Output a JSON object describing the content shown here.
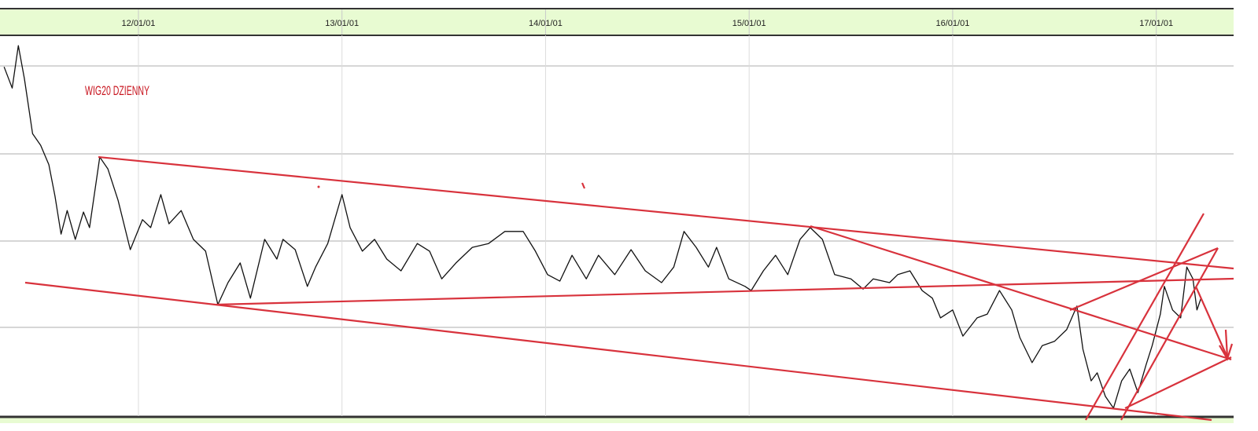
{
  "chart_data": {
    "type": "line",
    "title": "WIG20 DZIENNY",
    "xlim": [
      2011.32,
      2017.38
    ],
    "xticks": [
      {
        "value": 2012,
        "label": "12/01/01"
      },
      {
        "value": 2013,
        "label": "13/01/01"
      },
      {
        "value": 2014,
        "label": "14/01/01"
      },
      {
        "value": 2015,
        "label": "15/01/01"
      },
      {
        "value": 2016,
        "label": "16/01/01"
      },
      {
        "value": 2017,
        "label": "17/01/01"
      }
    ],
    "ylim": [
      0,
      100
    ],
    "grid": true,
    "x": [
      2011.34,
      2011.38,
      2011.41,
      2011.44,
      2011.48,
      2011.52,
      2011.56,
      2011.59,
      2011.62,
      2011.65,
      2011.69,
      2011.73,
      2011.76,
      2011.81,
      2011.85,
      2011.9,
      2011.96,
      2012.02,
      2012.06,
      2012.11,
      2012.15,
      2012.21,
      2012.27,
      2012.33,
      2012.39,
      2012.44,
      2012.5,
      2012.55,
      2012.62,
      2012.68,
      2012.71,
      2012.77,
      2012.83,
      2012.87,
      2012.93,
      2013.0,
      2013.04,
      2013.1,
      2013.16,
      2013.22,
      2013.29,
      2013.37,
      2013.43,
      2013.49,
      2013.56,
      2013.64,
      2013.72,
      2013.8,
      2013.89,
      2013.95,
      2014.01,
      2014.07,
      2014.13,
      2014.2,
      2014.26,
      2014.34,
      2014.42,
      2014.49,
      2014.57,
      2014.63,
      2014.68,
      2014.74,
      2014.8,
      2014.84,
      2014.9,
      2014.98,
      2015.01,
      2015.07,
      2015.13,
      2015.19,
      2015.25,
      2015.3,
      2015.36,
      2015.42,
      2015.5,
      2015.56,
      2015.61,
      2015.69,
      2015.73,
      2015.79,
      2015.85,
      2015.9,
      2015.94,
      2016.0,
      2016.05,
      2016.12,
      2016.17,
      2016.23,
      2016.29,
      2016.33,
      2016.39,
      2016.44,
      2016.5,
      2016.56,
      2016.61,
      2016.64,
      2016.68,
      2016.71,
      2016.75,
      2016.79,
      2016.83,
      2016.87,
      2016.91,
      2016.95,
      2016.98,
      2017.02,
      2017.04,
      2017.08,
      2017.12,
      2017.15,
      2017.18,
      2017.2,
      2017.22
    ],
    "series": [
      {
        "color": "#111111",
        "values": [
          92.1,
          86.5,
          97.7,
          89.0,
          74.5,
          71.4,
          66.3,
          58.0,
          48.0,
          54.2,
          46.6,
          53.8,
          49.7,
          68.3,
          65.2,
          56.9,
          43.9,
          51.8,
          49.7,
          58.4,
          50.7,
          54.2,
          46.6,
          43.5,
          29.4,
          35.2,
          40.4,
          31.1,
          46.6,
          41.4,
          46.6,
          43.9,
          34.2,
          39.3,
          45.5,
          58.4,
          49.7,
          43.5,
          46.6,
          41.4,
          38.3,
          45.5,
          43.5,
          36.2,
          40.4,
          44.5,
          45.5,
          48.7,
          48.7,
          43.5,
          37.3,
          35.6,
          42.4,
          36.2,
          42.4,
          37.3,
          43.9,
          38.3,
          35.2,
          39.3,
          48.7,
          44.5,
          39.3,
          44.5,
          36.2,
          34.2,
          33.1,
          38.3,
          42.4,
          37.3,
          46.6,
          49.7,
          46.6,
          37.3,
          36.2,
          33.5,
          36.2,
          35.2,
          37.3,
          38.3,
          33.1,
          31.1,
          25.9,
          28.0,
          21.1,
          25.9,
          26.9,
          33.1,
          28.0,
          20.7,
          14.1,
          18.6,
          19.7,
          22.8,
          29.0,
          17.6,
          9.3,
          11.4,
          5.2,
          2.1,
          9.3,
          12.4,
          6.2,
          13.5,
          18.6,
          26.9,
          34.2,
          28.0,
          25.9,
          39.3,
          36.2,
          28.0,
          31.1
        ]
      }
    ]
  }
}
